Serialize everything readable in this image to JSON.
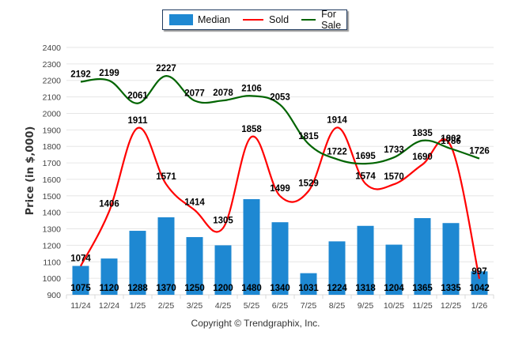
{
  "chart_data": {
    "type": "bar",
    "title": "",
    "xlabel": "",
    "ylabel": "Price (in $,000)",
    "ylim": [
      900,
      2400
    ],
    "yticks": [
      900,
      1000,
      1100,
      1200,
      1300,
      1400,
      1500,
      1600,
      1700,
      1800,
      1900,
      2000,
      2100,
      2200,
      2300,
      2400
    ],
    "grid": true,
    "legend_position": "top-center",
    "categories": [
      "11/24",
      "12/24",
      "1/25",
      "2/25",
      "3/25",
      "4/25",
      "5/25",
      "6/25",
      "7/25",
      "8/25",
      "9/25",
      "10/25",
      "11/25",
      "12/25",
      "1/26"
    ],
    "series": [
      {
        "name": "Median",
        "type": "bar",
        "color": "#1e88d2",
        "values": [
          1075,
          1120,
          1288,
          1370,
          1250,
          1200,
          1480,
          1340,
          1031,
          1224,
          1318,
          1204,
          1365,
          1335,
          1042
        ]
      },
      {
        "name": "Sold",
        "type": "line",
        "color": "#ff0000",
        "values": [
          1074,
          1406,
          1911,
          1571,
          1414,
          1305,
          1858,
          1499,
          1529,
          1914,
          1574,
          1570,
          1690,
          1802,
          997
        ]
      },
      {
        "name": "For Sale",
        "type": "line",
        "color": "#006400",
        "values": [
          2192,
          2199,
          2061,
          2227,
          2077,
          2078,
          2106,
          2053,
          1815,
          1722,
          1695,
          1733,
          1835,
          1786,
          1726
        ]
      }
    ]
  },
  "legend": {
    "items": [
      {
        "label": "Median",
        "kind": "bar",
        "color": "#1e88d2"
      },
      {
        "label": "Sold",
        "kind": "line",
        "color": "#ff0000"
      },
      {
        "label": "For Sale",
        "kind": "line",
        "color": "#006400"
      }
    ]
  },
  "footer": {
    "copyright": "Copyright © Trendgraphix, Inc."
  }
}
